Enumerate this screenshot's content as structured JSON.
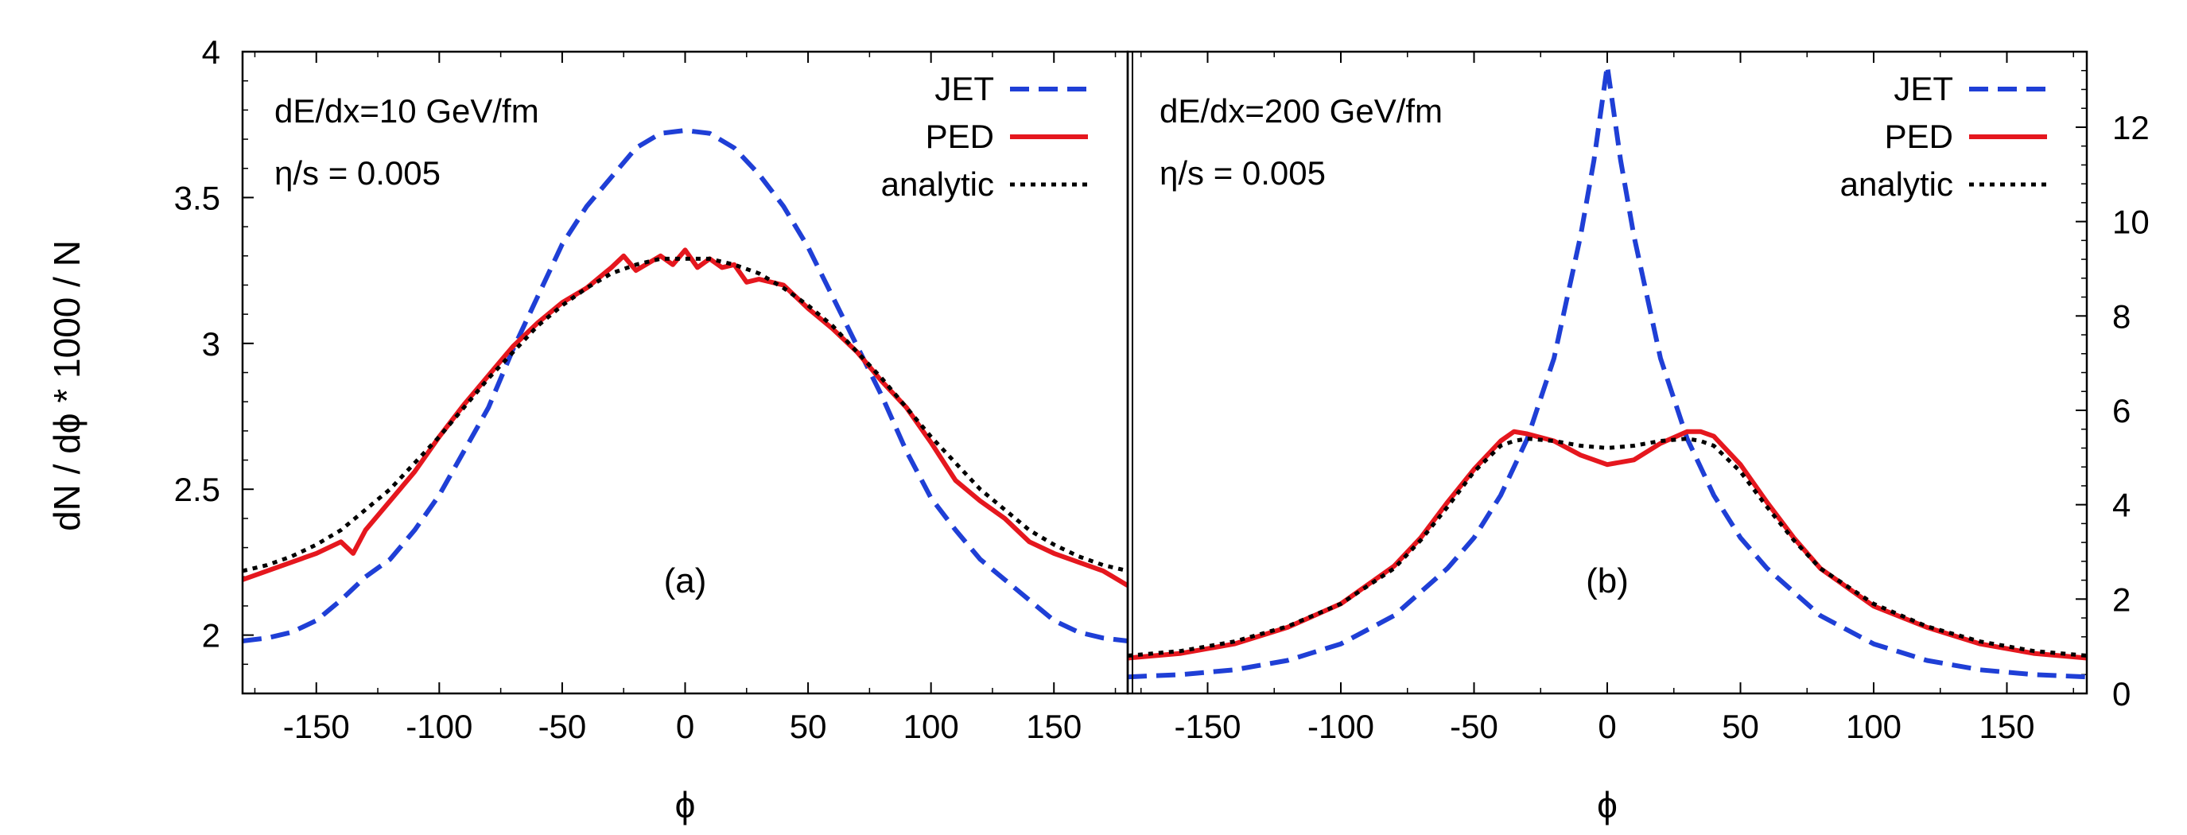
{
  "chart_data": [
    {
      "type": "line",
      "panel_label": "(a)",
      "annotations": [
        "dE/dx=10 GeV/fm",
        "η/s = 0.005"
      ],
      "xlabel": "ϕ",
      "ylabel": "dN / dϕ * 1000 / N",
      "xlim": [
        -180,
        180
      ],
      "ylim": [
        1.8,
        4.0
      ],
      "xticks": [
        -150,
        -100,
        -50,
        0,
        50,
        100,
        150
      ],
      "xtick_labels": [
        "-150",
        "-100",
        "-50",
        "0",
        "50",
        "100",
        "150"
      ],
      "yticks": [
        2,
        2.5,
        3,
        3.5,
        4
      ],
      "ytick_labels": [
        "2",
        "2.5",
        "3",
        "3.5",
        "4"
      ],
      "y_axis_side": "left",
      "legend_position": "top-right",
      "series": [
        {
          "name": "JET",
          "style": "dashed",
          "color": "#1f3fd6",
          "x": [
            -180,
            -170,
            -160,
            -150,
            -140,
            -130,
            -120,
            -110,
            -100,
            -90,
            -80,
            -70,
            -60,
            -50,
            -40,
            -30,
            -20,
            -10,
            0,
            10,
            20,
            30,
            40,
            50,
            60,
            70,
            80,
            90,
            100,
            110,
            120,
            130,
            140,
            150,
            160,
            170,
            180
          ],
          "y": [
            1.98,
            1.99,
            2.01,
            2.05,
            2.12,
            2.2,
            2.26,
            2.36,
            2.48,
            2.63,
            2.78,
            2.98,
            3.16,
            3.34,
            3.47,
            3.57,
            3.67,
            3.72,
            3.73,
            3.72,
            3.67,
            3.58,
            3.47,
            3.33,
            3.16,
            2.99,
            2.82,
            2.63,
            2.47,
            2.36,
            2.26,
            2.19,
            2.12,
            2.05,
            2.01,
            1.99,
            1.98
          ]
        },
        {
          "name": "PED",
          "style": "solid",
          "color": "#e5171e",
          "x": [
            -180,
            -170,
            -160,
            -150,
            -140,
            -135,
            -130,
            -120,
            -110,
            -100,
            -90,
            -80,
            -70,
            -60,
            -50,
            -40,
            -30,
            -25,
            -20,
            -10,
            -5,
            0,
            5,
            10,
            15,
            20,
            25,
            30,
            40,
            50,
            60,
            70,
            80,
            90,
            100,
            110,
            120,
            130,
            140,
            150,
            160,
            170,
            180
          ],
          "y": [
            2.19,
            2.22,
            2.25,
            2.28,
            2.32,
            2.28,
            2.36,
            2.46,
            2.56,
            2.68,
            2.79,
            2.89,
            2.99,
            3.07,
            3.14,
            3.19,
            3.26,
            3.3,
            3.25,
            3.3,
            3.27,
            3.32,
            3.26,
            3.29,
            3.26,
            3.27,
            3.21,
            3.22,
            3.2,
            3.12,
            3.05,
            2.97,
            2.87,
            2.78,
            2.66,
            2.53,
            2.46,
            2.4,
            2.32,
            2.28,
            2.25,
            2.22,
            2.17
          ]
        },
        {
          "name": "analytic",
          "style": "dotted",
          "color": "#000000",
          "x": [
            -180,
            -170,
            -160,
            -150,
            -140,
            -130,
            -120,
            -110,
            -100,
            -90,
            -80,
            -70,
            -60,
            -50,
            -40,
            -30,
            -20,
            -10,
            0,
            10,
            20,
            30,
            40,
            50,
            60,
            70,
            80,
            90,
            100,
            110,
            120,
            130,
            140,
            150,
            160,
            170,
            180
          ],
          "y": [
            2.22,
            2.24,
            2.27,
            2.31,
            2.36,
            2.43,
            2.5,
            2.59,
            2.68,
            2.78,
            2.88,
            2.97,
            3.06,
            3.13,
            3.19,
            3.24,
            3.27,
            3.29,
            3.29,
            3.29,
            3.27,
            3.24,
            3.19,
            3.13,
            3.06,
            2.97,
            2.88,
            2.78,
            2.68,
            2.59,
            2.5,
            2.43,
            2.36,
            2.31,
            2.27,
            2.24,
            2.22
          ]
        }
      ]
    },
    {
      "type": "line",
      "panel_label": "(b)",
      "annotations": [
        "dE/dx=200 GeV/fm",
        "η/s = 0.005"
      ],
      "xlabel": "ϕ",
      "ylabel": "",
      "xlim": [
        -180,
        180
      ],
      "ylim": [
        0,
        13.6
      ],
      "xticks": [
        -150,
        -100,
        -50,
        0,
        50,
        100,
        150
      ],
      "xtick_labels": [
        "-150",
        "-100",
        "-50",
        "0",
        "50",
        "100",
        "150"
      ],
      "yticks": [
        0,
        2,
        4,
        6,
        8,
        10,
        12
      ],
      "ytick_labels": [
        "0",
        "2",
        "4",
        "6",
        "8",
        "10",
        "12"
      ],
      "y_axis_side": "right",
      "legend_position": "top-right",
      "series": [
        {
          "name": "JET",
          "style": "dashed",
          "color": "#1f3fd6",
          "x": [
            -180,
            -160,
            -140,
            -120,
            -100,
            -80,
            -60,
            -50,
            -40,
            -30,
            -20,
            -10,
            -5,
            0,
            5,
            10,
            20,
            30,
            40,
            50,
            60,
            80,
            100,
            120,
            140,
            160,
            180
          ],
          "y": [
            0.35,
            0.4,
            0.5,
            0.7,
            1.05,
            1.65,
            2.65,
            3.3,
            4.2,
            5.4,
            7.1,
            9.7,
            11.3,
            13.3,
            11.3,
            9.7,
            7.1,
            5.4,
            4.2,
            3.3,
            2.65,
            1.65,
            1.05,
            0.7,
            0.5,
            0.4,
            0.35
          ]
        },
        {
          "name": "PED",
          "style": "solid",
          "color": "#e5171e",
          "x": [
            -180,
            -160,
            -140,
            -120,
            -100,
            -80,
            -70,
            -60,
            -50,
            -40,
            -35,
            -30,
            -20,
            -10,
            0,
            10,
            20,
            30,
            35,
            40,
            50,
            60,
            70,
            80,
            100,
            120,
            140,
            160,
            180
          ],
          "y": [
            0.75,
            0.85,
            1.05,
            1.4,
            1.9,
            2.7,
            3.3,
            4.05,
            4.75,
            5.35,
            5.55,
            5.5,
            5.35,
            5.05,
            4.85,
            4.95,
            5.3,
            5.55,
            5.55,
            5.45,
            4.85,
            4.05,
            3.3,
            2.65,
            1.85,
            1.4,
            1.05,
            0.85,
            0.75
          ]
        },
        {
          "name": "analytic",
          "style": "dotted",
          "color": "#000000",
          "x": [
            -180,
            -160,
            -140,
            -120,
            -100,
            -80,
            -70,
            -60,
            -50,
            -40,
            -35,
            -30,
            -20,
            -10,
            0,
            10,
            20,
            30,
            35,
            40,
            50,
            60,
            70,
            80,
            100,
            120,
            140,
            160,
            180
          ],
          "y": [
            0.8,
            0.9,
            1.1,
            1.42,
            1.9,
            2.65,
            3.25,
            3.95,
            4.7,
            5.25,
            5.35,
            5.4,
            5.35,
            5.25,
            5.2,
            5.25,
            5.35,
            5.4,
            5.35,
            5.25,
            4.7,
            3.95,
            3.25,
            2.65,
            1.9,
            1.42,
            1.1,
            0.9,
            0.8
          ]
        }
      ]
    }
  ]
}
